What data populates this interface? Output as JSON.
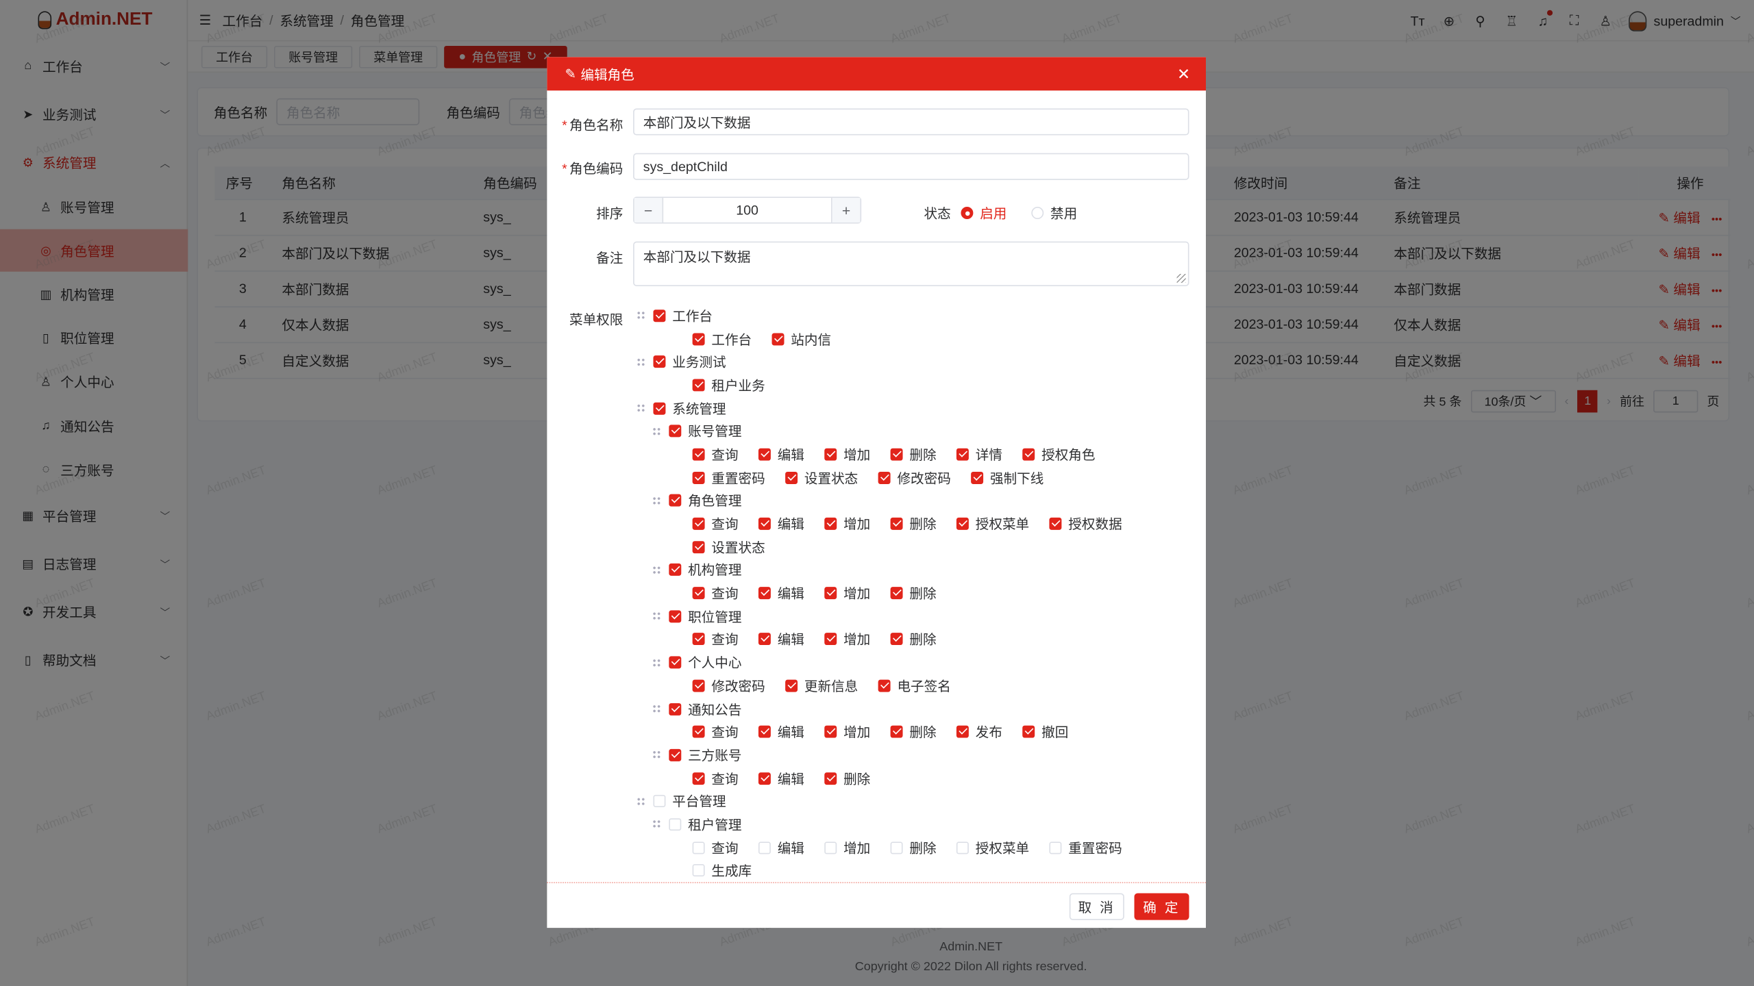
{
  "app": {
    "logo_text": "Admin.NET",
    "watermark": "Admin.NET"
  },
  "header": {
    "breadcrumb": [
      "工作台",
      "系统管理",
      "角色管理"
    ],
    "user": "superadmin",
    "icons": [
      "font-size-icon",
      "language-icon",
      "search-icon",
      "skin-icon",
      "bell-icon",
      "fullscreen-icon",
      "user-icon"
    ]
  },
  "sidebar": {
    "items": [
      {
        "label": "工作台",
        "icon": "home-icon"
      },
      {
        "label": "业务测试",
        "icon": "send-icon"
      },
      {
        "label": "系统管理",
        "icon": "gear-icon"
      },
      {
        "label": "账号管理",
        "icon": "user-icon"
      },
      {
        "label": "角色管理",
        "icon": "role-icon"
      },
      {
        "label": "机构管理",
        "icon": "org-icon"
      },
      {
        "label": "职位管理",
        "icon": "position-icon"
      },
      {
        "label": "个人中心",
        "icon": "person-icon"
      },
      {
        "label": "通知公告",
        "icon": "bell-icon"
      },
      {
        "label": "三方账号",
        "icon": "chat-icon"
      },
      {
        "label": "平台管理",
        "icon": "grid-icon"
      },
      {
        "label": "日志管理",
        "icon": "log-icon"
      },
      {
        "label": "开发工具",
        "icon": "tool-icon"
      },
      {
        "label": "帮助文档",
        "icon": "doc-icon"
      }
    ]
  },
  "tabs": [
    "工作台",
    "账号管理",
    "菜单管理",
    "角色管理"
  ],
  "search": {
    "name_label": "角色名称",
    "name_placeholder": "角色名称",
    "code_label": "角色编码",
    "code_placeholder": "角色编码"
  },
  "table": {
    "headers": [
      "序号",
      "角色名称",
      "角色编码",
      "修改时间",
      "备注",
      "操作"
    ],
    "rows": [
      [
        "1",
        "系统管理员",
        "sys_",
        "2023-01-03 10:59:44",
        "系统管理员"
      ],
      [
        "2",
        "本部门及以下数据",
        "sys_",
        "2023-01-03 10:59:44",
        "本部门及以下数据"
      ],
      [
        "3",
        "本部门数据",
        "sys_",
        "2023-01-03 10:59:44",
        "本部门数据"
      ],
      [
        "4",
        "仅本人数据",
        "sys_",
        "2023-01-03 10:59:44",
        "仅本人数据"
      ],
      [
        "5",
        "自定义数据",
        "sys_",
        "2023-01-03 10:59:44",
        "自定义数据"
      ]
    ],
    "edit_label": "编辑",
    "more_label": "•••"
  },
  "pagination": {
    "total": "共 5 条",
    "page_size": "10条/页",
    "current": "1",
    "goto_label": "前往",
    "goto_value": "1",
    "page_suffix": "页"
  },
  "footer": {
    "name": "Admin.NET",
    "copyright": "Copyright © 2022 Dilon All rights reserved."
  },
  "dialog": {
    "title": "编辑角色",
    "name_label": "角色名称",
    "name_value": "本部门及以下数据",
    "code_label": "角色编码",
    "code_value": "sys_deptChild",
    "order_label": "排序",
    "order_value": "100",
    "status_label": "状态",
    "status_enabled": "启用",
    "status_disabled": "禁用",
    "status_selected": "启用",
    "remark_label": "备注",
    "remark_value": "本部门及以下数据",
    "menu_label": "菜单权限",
    "cancel": "取 消",
    "confirm": "确 定",
    "menu_tree": [
      {
        "label": "工作台",
        "checked": true,
        "leaves": [
          {
            "label": "工作台",
            "checked": true
          },
          {
            "label": "站内信",
            "checked": true
          }
        ]
      },
      {
        "label": "业务测试",
        "checked": true,
        "leaves": [
          {
            "label": "租户业务",
            "checked": true
          }
        ]
      },
      {
        "label": "系统管理",
        "checked": true,
        "children": [
          {
            "label": "账号管理",
            "checked": true,
            "leaves": [
              {
                "label": "查询",
                "checked": true
              },
              {
                "label": "编辑",
                "checked": true
              },
              {
                "label": "增加",
                "checked": true
              },
              {
                "label": "删除",
                "checked": true
              },
              {
                "label": "详情",
                "checked": true
              },
              {
                "label": "授权角色",
                "checked": true
              },
              {
                "label": "重置密码",
                "checked": true
              },
              {
                "label": "设置状态",
                "checked": true
              },
              {
                "label": "修改密码",
                "checked": true
              },
              {
                "label": "强制下线",
                "checked": true
              }
            ]
          },
          {
            "label": "角色管理",
            "checked": true,
            "leaves": [
              {
                "label": "查询",
                "checked": true
              },
              {
                "label": "编辑",
                "checked": true
              },
              {
                "label": "增加",
                "checked": true
              },
              {
                "label": "删除",
                "checked": true
              },
              {
                "label": "授权菜单",
                "checked": true
              },
              {
                "label": "授权数据",
                "checked": true
              },
              {
                "label": "设置状态",
                "checked": true
              }
            ]
          },
          {
            "label": "机构管理",
            "checked": true,
            "leaves": [
              {
                "label": "查询",
                "checked": true
              },
              {
                "label": "编辑",
                "checked": true
              },
              {
                "label": "增加",
                "checked": true
              },
              {
                "label": "删除",
                "checked": true
              }
            ]
          },
          {
            "label": "职位管理",
            "checked": true,
            "leaves": [
              {
                "label": "查询",
                "checked": true
              },
              {
                "label": "编辑",
                "checked": true
              },
              {
                "label": "增加",
                "checked": true
              },
              {
                "label": "删除",
                "checked": true
              }
            ]
          },
          {
            "label": "个人中心",
            "checked": true,
            "leaves": [
              {
                "label": "修改密码",
                "checked": true
              },
              {
                "label": "更新信息",
                "checked": true
              },
              {
                "label": "电子签名",
                "checked": true
              }
            ]
          },
          {
            "label": "通知公告",
            "checked": true,
            "leaves": [
              {
                "label": "查询",
                "checked": true
              },
              {
                "label": "编辑",
                "checked": true
              },
              {
                "label": "增加",
                "checked": true
              },
              {
                "label": "删除",
                "checked": true
              },
              {
                "label": "发布",
                "checked": true
              },
              {
                "label": "撤回",
                "checked": true
              }
            ]
          },
          {
            "label": "三方账号",
            "checked": true,
            "leaves": [
              {
                "label": "查询",
                "checked": true
              },
              {
                "label": "编辑",
                "checked": true
              },
              {
                "label": "删除",
                "checked": true
              }
            ]
          }
        ]
      },
      {
        "label": "平台管理",
        "checked": false,
        "children": [
          {
            "label": "租户管理",
            "checked": false,
            "leaves": [
              {
                "label": "查询",
                "checked": false
              },
              {
                "label": "编辑",
                "checked": false
              },
              {
                "label": "增加",
                "checked": false
              },
              {
                "label": "删除",
                "checked": false
              },
              {
                "label": "授权菜单",
                "checked": false
              },
              {
                "label": "重置密码",
                "checked": false
              },
              {
                "label": "生成库",
                "checked": false
              }
            ]
          }
        ]
      }
    ]
  },
  "colors": {
    "accent": "#e1251b"
  }
}
